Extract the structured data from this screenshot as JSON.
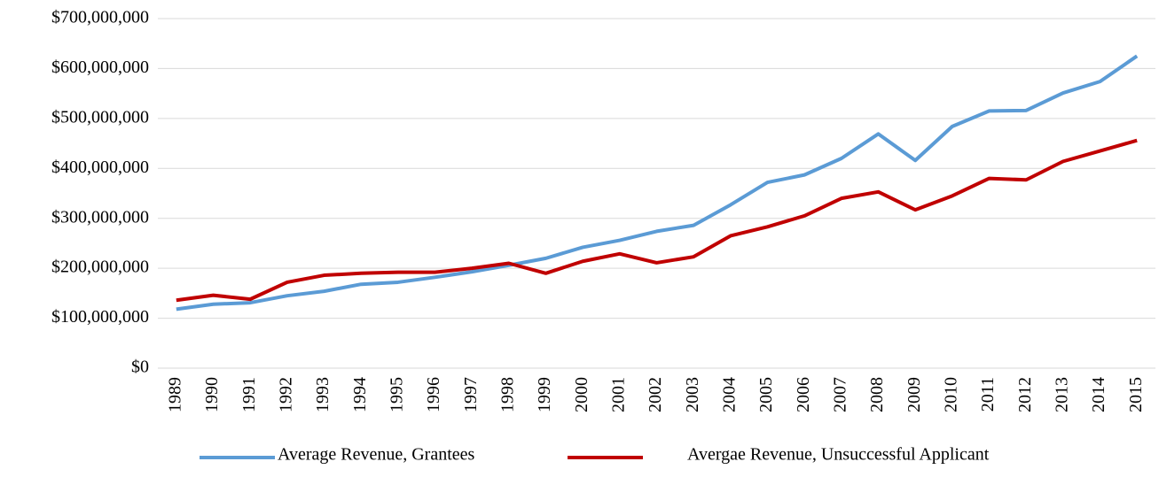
{
  "chart_data": {
    "type": "line",
    "categories": [
      "1989",
      "1990",
      "1991",
      "1992",
      "1993",
      "1994",
      "1995",
      "1996",
      "1997",
      "1998",
      "1999",
      "2000",
      "2001",
      "2002",
      "2003",
      "2004",
      "2005",
      "2006",
      "2007",
      "2008",
      "2009",
      "2010",
      "2011",
      "2012",
      "2013",
      "2014",
      "2015"
    ],
    "series": [
      {
        "name": "Average Revenue, Grantees",
        "color": "#5b9bd5",
        "values": [
          118000000,
          128000000,
          131000000,
          145000000,
          154000000,
          168000000,
          172000000,
          182000000,
          193000000,
          206000000,
          220000000,
          242000000,
          256000000,
          274000000,
          286000000,
          327000000,
          372000000,
          387000000,
          420000000,
          469000000,
          416000000,
          484000000,
          515000000,
          516000000,
          551000000,
          574000000,
          625000000
        ]
      },
      {
        "name": "Avergae Revenue, Unsuccessful Applicant",
        "color": "#c00000",
        "values": [
          136000000,
          146000000,
          138000000,
          172000000,
          186000000,
          190000000,
          192000000,
          192000000,
          200000000,
          210000000,
          190000000,
          214000000,
          229000000,
          211000000,
          223000000,
          265000000,
          283000000,
          305000000,
          340000000,
          353000000,
          317000000,
          345000000,
          380000000,
          377000000,
          414000000,
          435000000,
          456000000
        ]
      }
    ],
    "ylim": [
      0,
      700000000
    ],
    "yticks": [
      {
        "value": 0,
        "label": "$0"
      },
      {
        "value": 100000000,
        "label": "$100,000,000"
      },
      {
        "value": 200000000,
        "label": "$200,000,000"
      },
      {
        "value": 300000000,
        "label": "$300,000,000"
      },
      {
        "value": 400000000,
        "label": "$400,000,000"
      },
      {
        "value": 500000000,
        "label": "$500,000,000"
      },
      {
        "value": 600000000,
        "label": "$600,000,000"
      },
      {
        "value": 700000000,
        "label": "$700,000,000"
      }
    ],
    "grid": true,
    "legend": "bottom"
  }
}
